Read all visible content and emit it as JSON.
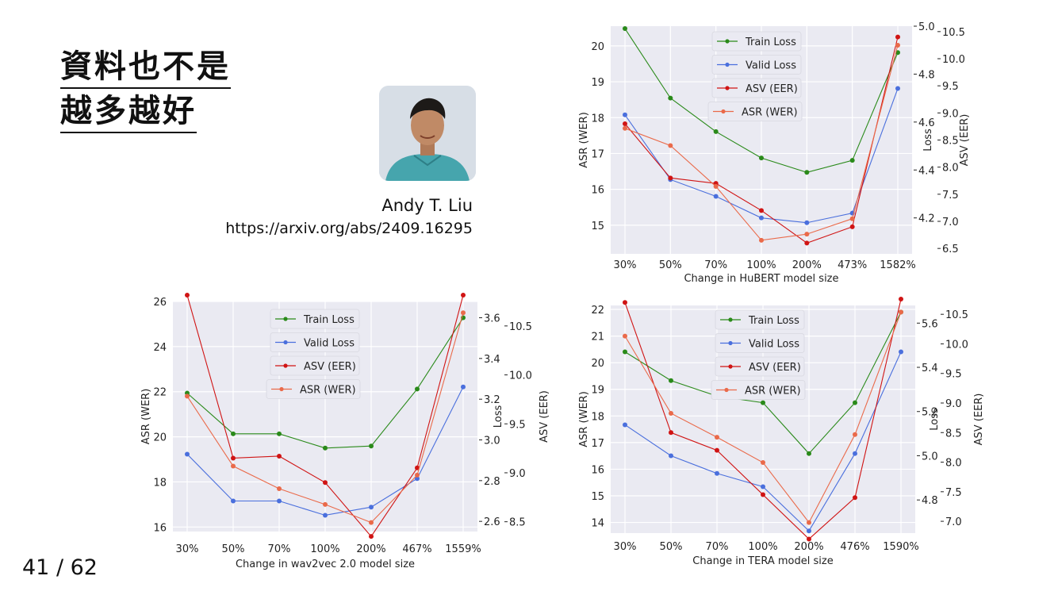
{
  "slide": {
    "title_line1": "資料也不是",
    "title_line2": "越多越好",
    "author": "Andy T. Liu",
    "url": "https://arxiv.org/abs/2409.16295",
    "page": "41 / 62"
  },
  "colors": {
    "train": "#2a8a1a",
    "valid": "#4a6fdd",
    "asv": "#d01414",
    "asr": "#ea6a4a",
    "plot_bg": "#eaeaf2"
  },
  "chart_data": [
    {
      "id": "hubert",
      "type": "line",
      "xlabel": "Change in HuBERT model size",
      "categories": [
        "30%",
        "50%",
        "70%",
        "100%",
        "200%",
        "473%",
        "1582%"
      ],
      "ylabel_left": "ASR (WER)",
      "ylabel_mid": "Loss",
      "ylabel_right": "ASV (EER)",
      "asr_axis": {
        "range": [
          14.2,
          20.55
        ],
        "ticks": [
          15,
          16,
          17,
          18,
          19,
          20
        ]
      },
      "loss_axis": {
        "range": [
          4.05,
          5.0
        ],
        "ticks": [
          4.2,
          4.4,
          4.6,
          4.8,
          5.0
        ],
        "labels": [
          "4.2",
          "4.4",
          "4.6",
          "4.8",
          "5.0"
        ]
      },
      "asv_axis": {
        "range": [
          6.4,
          10.6
        ],
        "ticks": [
          6.5,
          7.0,
          7.5,
          8.0,
          8.5,
          9.0,
          9.5,
          10.0,
          10.5
        ],
        "labels": [
          "6.5",
          "7.0",
          "7.5",
          "8.0",
          "8.5",
          "9.0",
          "9.5",
          "10.0",
          "10.5"
        ]
      },
      "legend": [
        "Train Loss",
        "Valid Loss",
        "ASV (EER)",
        "ASR (WER)"
      ],
      "series": [
        {
          "name": "Train Loss",
          "color": "#2a8a1a",
          "axis": "loss",
          "values": [
            4.99,
            4.7,
            4.56,
            4.45,
            4.39,
            4.44,
            4.89
          ]
        },
        {
          "name": "Valid Loss",
          "color": "#4a6fdd",
          "axis": "loss",
          "values": [
            4.63,
            4.36,
            4.29,
            4.2,
            4.18,
            4.22,
            4.74
          ]
        },
        {
          "name": "ASV (EER)",
          "color": "#d01414",
          "axis": "asv",
          "values": [
            8.8,
            7.8,
            7.7,
            7.2,
            6.6,
            6.9,
            10.4
          ]
        },
        {
          "name": "ASR (WER)",
          "color": "#ea6a4a",
          "axis": "asr",
          "values": [
            17.7,
            17.22,
            16.08,
            14.58,
            14.75,
            15.18,
            20.02
          ]
        }
      ]
    },
    {
      "id": "wav2vec",
      "type": "line",
      "xlabel": "Change in wav2vec 2.0 model size",
      "categories": [
        "30%",
        "50%",
        "70%",
        "100%",
        "200%",
        "467%",
        "1559%"
      ],
      "ylabel_left": "ASR (WER)",
      "ylabel_mid": "Loss",
      "ylabel_right": "ASV (EER)",
      "asr_axis": {
        "range": [
          15.8,
          26.0
        ],
        "ticks": [
          16,
          18,
          20,
          22,
          24,
          26
        ]
      },
      "loss_axis": {
        "range": [
          2.55,
          3.68
        ],
        "ticks": [
          2.6,
          2.8,
          3.0,
          3.2,
          3.4,
          3.6
        ],
        "labels": [
          "2.6",
          "2.8",
          "3.0",
          "3.2",
          "3.4",
          "3.6"
        ]
      },
      "asv_axis": {
        "range": [
          8.4,
          10.75
        ],
        "ticks": [
          8.5,
          9.0,
          9.5,
          10.0,
          10.5
        ],
        "labels": [
          "8.5",
          "9.0",
          "9.5",
          "10.0",
          "10.5"
        ]
      },
      "legend": [
        "Train Loss",
        "Valid Loss",
        "ASV (EER)",
        "ASR (WER)"
      ],
      "series": [
        {
          "name": "Train Loss",
          "color": "#2a8a1a",
          "axis": "loss",
          "values": [
            3.23,
            3.03,
            3.03,
            2.96,
            2.97,
            3.25,
            3.6
          ]
        },
        {
          "name": "Valid Loss",
          "color": "#4a6fdd",
          "axis": "loss",
          "values": [
            2.93,
            2.7,
            2.7,
            2.63,
            2.67,
            2.81,
            3.26
          ]
        },
        {
          "name": "ASV (EER)",
          "color": "#d01414",
          "axis": "asv",
          "values": [
            11.2,
            9.15,
            9.17,
            8.9,
            8.35,
            9.05,
            11.1
          ]
        },
        {
          "name": "ASR (WER)",
          "color": "#ea6a4a",
          "axis": "asr",
          "values": [
            21.8,
            18.7,
            17.7,
            17.0,
            16.2,
            18.3,
            25.5
          ]
        }
      ]
    },
    {
      "id": "tera",
      "type": "line",
      "xlabel": "Change in TERA model size",
      "categories": [
        "30%",
        "50%",
        "70%",
        "100%",
        "200%",
        "476%",
        "1590%"
      ],
      "ylabel_left": "ASR (WER)",
      "ylabel_mid": "Loss",
      "ylabel_right": "ASV (EER)",
      "asr_axis": {
        "range": [
          13.6,
          22.15
        ],
        "ticks": [
          14,
          15,
          16,
          17,
          18,
          19,
          20,
          21,
          22
        ]
      },
      "loss_axis": {
        "range": [
          4.65,
          5.68
        ],
        "ticks": [
          4.8,
          5.0,
          5.2,
          5.4,
          5.6
        ],
        "labels": [
          "4.8",
          "5.0",
          "5.2",
          "5.4",
          "5.6"
        ]
      },
      "asv_axis": {
        "range": [
          6.8,
          10.65
        ],
        "ticks": [
          7.0,
          7.5,
          8.0,
          8.5,
          9.0,
          9.5,
          10.0,
          10.5
        ],
        "labels": [
          "7.0",
          "7.5",
          "8.0",
          "8.5",
          "9.0",
          "9.5",
          "10.0",
          "10.5"
        ]
      },
      "legend": [
        "Train Loss",
        "Valid Loss",
        "ASV (EER)",
        "ASR (WER)"
      ],
      "series": [
        {
          "name": "Train Loss",
          "color": "#2a8a1a",
          "axis": "loss",
          "values": [
            5.47,
            5.34,
            5.27,
            5.24,
            5.01,
            5.24,
            5.65
          ]
        },
        {
          "name": "Valid Loss",
          "color": "#4a6fdd",
          "axis": "loss",
          "values": [
            5.14,
            5.0,
            4.92,
            4.86,
            4.66,
            5.01,
            5.47
          ]
        },
        {
          "name": "ASV (EER)",
          "color": "#d01414",
          "axis": "asv",
          "values": [
            10.7,
            8.5,
            8.2,
            7.45,
            6.7,
            7.4,
            10.9
          ]
        },
        {
          "name": "ASR (WER)",
          "color": "#ea6a4a",
          "axis": "asr",
          "values": [
            21.0,
            18.1,
            17.2,
            16.25,
            14.0,
            17.3,
            21.9
          ]
        }
      ]
    }
  ]
}
